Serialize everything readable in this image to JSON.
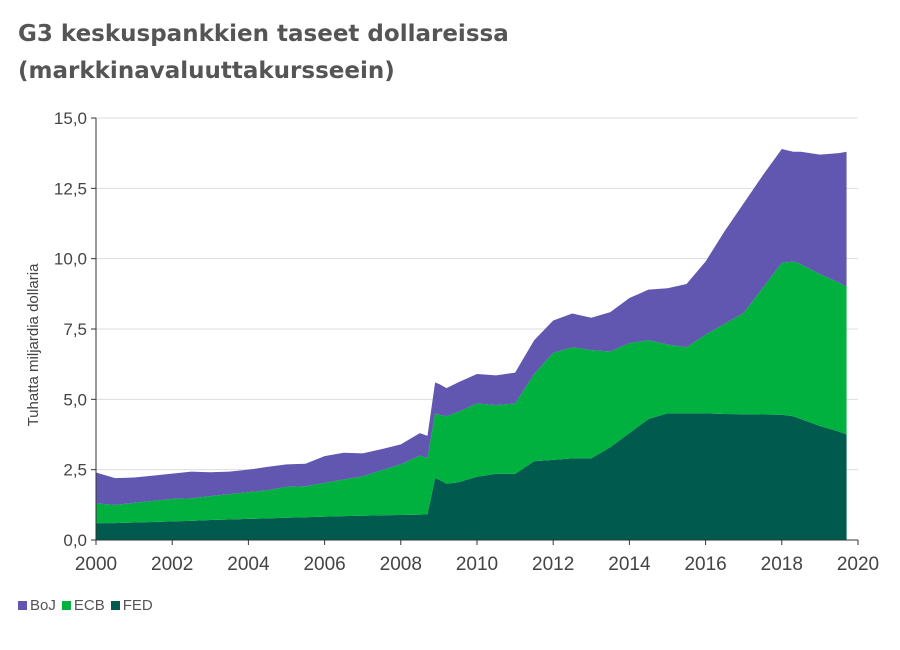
{
  "title_line1": "G3 keskuspankkien taseet dollareissa",
  "title_line2": "(markkinavaluuttakursseein)",
  "chart_data": {
    "type": "area",
    "stacked": true,
    "ylabel": "Tuhatta miljardia dollaria",
    "xlabel": "",
    "ylim": [
      0,
      15
    ],
    "xlim": [
      2000,
      2020
    ],
    "yticks": [
      "0,0",
      "2,5",
      "5,0",
      "7,5",
      "10,0",
      "12,5",
      "15,0"
    ],
    "ytick_values": [
      0,
      2.5,
      5,
      7.5,
      10,
      12.5,
      15
    ],
    "xticks": [
      "2000",
      "2002",
      "2004",
      "2006",
      "2008",
      "2010",
      "2012",
      "2014",
      "2016",
      "2018",
      "2020"
    ],
    "xtick_values": [
      2000,
      2002,
      2004,
      2006,
      2008,
      2010,
      2012,
      2014,
      2016,
      2018,
      2020
    ],
    "grid": "horizontal",
    "legend_position": "bottom-left",
    "x": [
      2000.0,
      2000.5,
      2001.0,
      2001.5,
      2002.0,
      2002.5,
      2003.0,
      2003.5,
      2004.0,
      2004.5,
      2005.0,
      2005.5,
      2006.0,
      2006.5,
      2007.0,
      2007.5,
      2008.0,
      2008.5,
      2008.7,
      2008.9,
      2009.0,
      2009.2,
      2009.5,
      2010.0,
      2010.5,
      2011.0,
      2011.5,
      2012.0,
      2012.5,
      2013.0,
      2013.5,
      2014.0,
      2014.5,
      2015.0,
      2015.5,
      2016.0,
      2016.5,
      2017.0,
      2017.5,
      2018.0,
      2018.3,
      2018.5,
      2019.0,
      2019.5,
      2019.7
    ],
    "series": [
      {
        "name": "FED",
        "color": "#005a4e",
        "values": [
          0.6,
          0.6,
          0.62,
          0.64,
          0.66,
          0.68,
          0.71,
          0.73,
          0.75,
          0.77,
          0.79,
          0.81,
          0.83,
          0.85,
          0.86,
          0.88,
          0.89,
          0.9,
          0.91,
          2.2,
          2.15,
          2.0,
          2.05,
          2.25,
          2.35,
          2.35,
          2.8,
          2.85,
          2.9,
          2.9,
          3.3,
          3.8,
          4.3,
          4.5,
          4.5,
          4.5,
          4.48,
          4.47,
          4.46,
          4.45,
          4.4,
          4.3,
          4.05,
          3.85,
          3.75
        ]
      },
      {
        "name": "ECB",
        "color": "#00b140",
        "values": [
          0.7,
          0.65,
          0.7,
          0.75,
          0.8,
          0.8,
          0.85,
          0.9,
          0.95,
          1.0,
          1.1,
          1.1,
          1.2,
          1.3,
          1.4,
          1.6,
          1.8,
          2.1,
          2.0,
          2.3,
          2.3,
          2.4,
          2.5,
          2.6,
          2.45,
          2.5,
          3.1,
          3.8,
          3.95,
          3.85,
          3.4,
          3.2,
          2.8,
          2.45,
          2.35,
          2.8,
          3.2,
          3.6,
          4.5,
          5.4,
          5.5,
          5.5,
          5.4,
          5.3,
          5.25
        ]
      },
      {
        "name": "BoJ",
        "color": "#6257b0",
        "values": [
          1.1,
          0.95,
          0.9,
          0.9,
          0.9,
          0.95,
          0.85,
          0.8,
          0.8,
          0.83,
          0.8,
          0.8,
          0.95,
          0.95,
          0.82,
          0.75,
          0.71,
          0.8,
          0.79,
          1.1,
          1.1,
          1.0,
          1.05,
          1.05,
          1.05,
          1.1,
          1.2,
          1.15,
          1.2,
          1.15,
          1.4,
          1.6,
          1.8,
          2.0,
          2.25,
          2.6,
          3.3,
          3.9,
          4.0,
          4.05,
          3.9,
          4.0,
          4.25,
          4.6,
          4.8
        ]
      }
    ]
  }
}
